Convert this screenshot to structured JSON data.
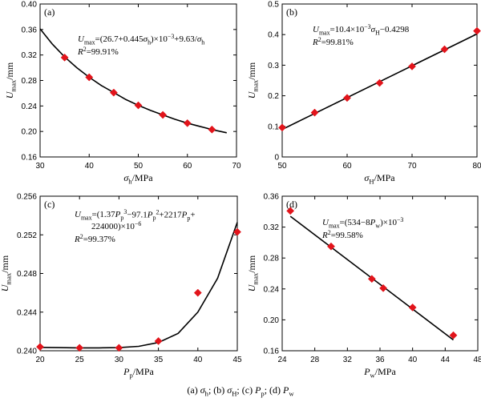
{
  "caption": "(a) σh; (b) σH; (c) Pp; (d) Pw",
  "colors": {
    "marker": "#e2141b",
    "line": "#000000",
    "frame": "#000000"
  },
  "chart_data": [
    {
      "type": "scatter",
      "panel_label": "(a)",
      "xlabel": "σh/MPa",
      "ylabel": "Umax/mm",
      "xlim": [
        30,
        70
      ],
      "ylim": [
        0.16,
        0.4
      ],
      "xticks": [
        30,
        40,
        50,
        60,
        70
      ],
      "yticks": [
        0.16,
        0.2,
        0.24,
        0.28,
        0.32,
        0.36,
        0.4
      ],
      "ytick_decimals": 2,
      "equation": "Umax=(26.7+0.445σh)×10−3+9.63/σh",
      "r2": "R2=99.91%",
      "annotation_position": "top-right",
      "points": {
        "x": [
          35,
          40,
          45,
          50,
          55,
          60,
          65
        ],
        "y": [
          0.316,
          0.285,
          0.261,
          0.241,
          0.226,
          0.213,
          0.203
        ]
      },
      "fit": {
        "x": [
          30,
          32.5,
          35,
          37.5,
          40,
          42.5,
          45,
          47.5,
          50,
          52.5,
          55,
          57.5,
          60,
          62.5,
          65,
          68
        ],
        "y": [
          0.361,
          0.337,
          0.317,
          0.3,
          0.285,
          0.272,
          0.261,
          0.25,
          0.241,
          0.233,
          0.226,
          0.219,
          0.213,
          0.208,
          0.203,
          0.198
        ]
      }
    },
    {
      "type": "scatter",
      "panel_label": "(b)",
      "xlabel": "σH/MPa",
      "ylabel": "Umax/mm",
      "xlim": [
        50,
        80
      ],
      "ylim": [
        0,
        0.5
      ],
      "xticks": [
        50,
        60,
        70,
        80
      ],
      "yticks": [
        0,
        0.1,
        0.2,
        0.3,
        0.4,
        0.5
      ],
      "ytick_decimals": 1,
      "equation": "Umax=10.4×10−3σH−0.4298",
      "r2": "R2=99.81%",
      "annotation_position": "top-left",
      "points": {
        "x": [
          50,
          55,
          60,
          65,
          70,
          75,
          80
        ],
        "y": [
          0.096,
          0.145,
          0.193,
          0.242,
          0.296,
          0.352,
          0.412
        ]
      },
      "fit": {
        "x": [
          50,
          80
        ],
        "y": [
          0.09,
          0.402
        ]
      }
    },
    {
      "type": "scatter",
      "panel_label": "(c)",
      "xlabel": "Pp/MPa",
      "ylabel": "Umax/mm",
      "xlim": [
        20,
        45
      ],
      "ylim": [
        0.24,
        0.256
      ],
      "xticks": [
        20,
        25,
        30,
        35,
        40,
        45
      ],
      "yticks": [
        0.24,
        0.244,
        0.248,
        0.252,
        0.256
      ],
      "ytick_decimals": 3,
      "equation_line1": "Umax=(1.37Pp3−97.1Pp2+2217Pp+",
      "equation_line2": "224000)×10−6",
      "r2": "R2=99.37%",
      "annotation_position": "top-left",
      "points": {
        "x": [
          20,
          25,
          30,
          35,
          40,
          45
        ],
        "y": [
          0.2404,
          0.2403,
          0.2403,
          0.241,
          0.246,
          0.2523
        ]
      },
      "fit": {
        "x": [
          20,
          22.5,
          25,
          27.5,
          30,
          32.5,
          35,
          37.5,
          40,
          42.5,
          45
        ],
        "y": [
          0.24035,
          0.24032,
          0.2403,
          0.2403,
          0.24032,
          0.24046,
          0.24085,
          0.2418,
          0.244,
          0.2475,
          0.2533
        ]
      }
    },
    {
      "type": "scatter",
      "panel_label": "(d)",
      "xlabel": "Pw/MPa",
      "ylabel": "Umax/mm",
      "xlim": [
        24,
        48
      ],
      "ylim": [
        0.16,
        0.36
      ],
      "xticks": [
        24,
        28,
        32,
        36,
        40,
        44,
        48
      ],
      "yticks": [
        0.16,
        0.2,
        0.24,
        0.28,
        0.32,
        0.36
      ],
      "ytick_decimals": 2,
      "equation": "Umax=(534−8Pw)×10−3",
      "r2": "R2=99.58%",
      "annotation_position": "top-left",
      "points": {
        "x": [
          25,
          30,
          35,
          36.4,
          40,
          45
        ],
        "y": [
          0.341,
          0.295,
          0.253,
          0.241,
          0.216,
          0.18
        ]
      },
      "fit": {
        "x": [
          25,
          45
        ],
        "y": [
          0.334,
          0.174
        ]
      }
    }
  ]
}
